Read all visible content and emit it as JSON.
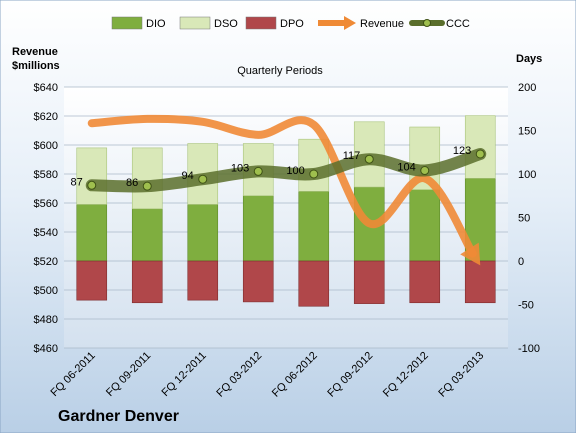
{
  "chart_data": {
    "type": "bar",
    "title": "Quarterly Periods",
    "company": "Gardner Denver",
    "left_axis": {
      "title_line1": "Revenue",
      "title_line2": "$millions",
      "range": [
        460,
        640
      ],
      "ticks": [
        "$460",
        "$480",
        "$500",
        "$520",
        "$540",
        "$560",
        "$580",
        "$600",
        "$620",
        "$640"
      ]
    },
    "right_axis": {
      "title": "Days",
      "range": [
        -100,
        200
      ],
      "ticks": [
        "-100",
        "-50",
        "0",
        "50",
        "100",
        "150",
        "200"
      ]
    },
    "categories": [
      "FQ 06-2011",
      "FQ 09-2011",
      "FQ 12-2011",
      "FQ 03-2012",
      "FQ 06-2012",
      "FQ 09-2012",
      "FQ 12-2012",
      "FQ 03-2013"
    ],
    "series": [
      {
        "name": "DIO",
        "axis": "right",
        "kind": "stacked-bar",
        "color": "#7fae3f",
        "values": [
          65,
          60,
          65,
          75,
          80,
          85,
          82,
          95
        ]
      },
      {
        "name": "DSO",
        "axis": "right",
        "kind": "stacked-bar",
        "color": "#d9e8b8",
        "values": [
          65,
          70,
          70,
          60,
          60,
          75,
          72,
          72
        ]
      },
      {
        "name": "DPO",
        "axis": "right",
        "kind": "negative-bar",
        "color": "#b0474a",
        "values": [
          -45,
          -48,
          -45,
          -47,
          -52,
          -49,
          -48,
          -48
        ]
      },
      {
        "name": "Revenue",
        "axis": "left",
        "kind": "line",
        "color": "#ef8a36",
        "values": [
          615,
          618,
          616,
          607,
          614,
          546,
          577,
          517
        ]
      },
      {
        "name": "CCC",
        "axis": "right",
        "kind": "line",
        "color": "#5a6e2c",
        "values": [
          87,
          86,
          94,
          103,
          100,
          117,
          104,
          123
        ]
      }
    ],
    "legend": [
      "DIO",
      "DSO",
      "DPO",
      "Revenue",
      "CCC"
    ],
    "legend_position": "top",
    "grid": true
  }
}
